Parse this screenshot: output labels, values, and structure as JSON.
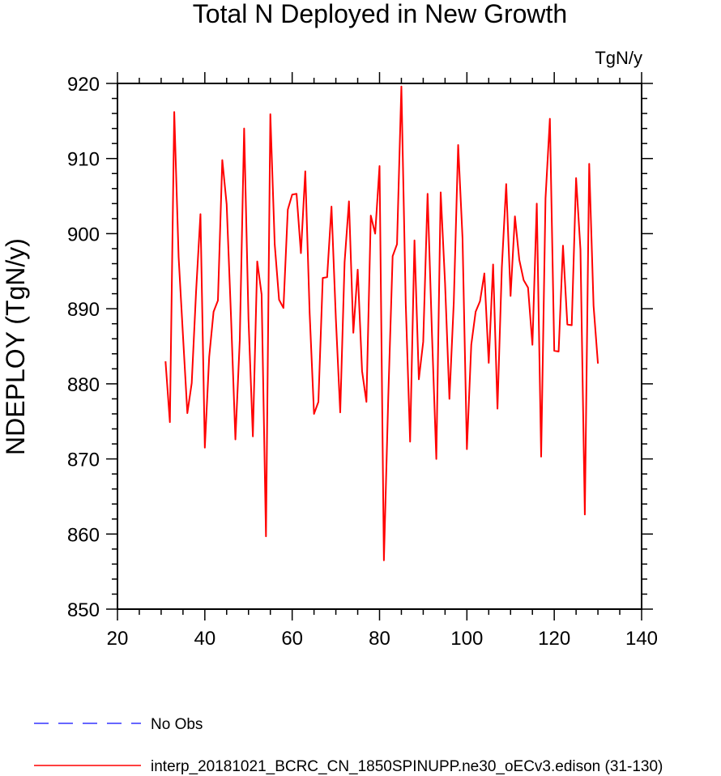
{
  "chart_data": {
    "type": "line",
    "title": "Total N Deployed in New Growth",
    "units": "TgN/y",
    "xlabel": "",
    "ylabel": "NDEPLOY  (TgN/y)",
    "xlim": [
      20,
      140
    ],
    "ylim": [
      850,
      920
    ],
    "x_ticks": [
      20,
      40,
      60,
      80,
      100,
      120,
      140
    ],
    "y_ticks": [
      850,
      860,
      870,
      880,
      890,
      900,
      910,
      920
    ],
    "grid": false,
    "legend_position": "bottom-left",
    "series": [
      {
        "name": "No Obs",
        "color": "#3333ff",
        "dash": true,
        "x": [],
        "y": []
      },
      {
        "name": "interp_20181021_BCRC_CN_1850SPINUPP.ne30_oECv3.edison (31-130)",
        "color": "#ff0000",
        "dash": false,
        "x": [
          31,
          32,
          33,
          34,
          35,
          36,
          37,
          38,
          39,
          40,
          41,
          42,
          43,
          44,
          45,
          46,
          47,
          48,
          49,
          50,
          51,
          52,
          53,
          54,
          55,
          56,
          57,
          58,
          59,
          60,
          61,
          62,
          63,
          64,
          65,
          66,
          67,
          68,
          69,
          70,
          71,
          72,
          73,
          74,
          75,
          76,
          77,
          78,
          79,
          80,
          81,
          82,
          83,
          84,
          85,
          86,
          87,
          88,
          89,
          90,
          91,
          92,
          93,
          94,
          95,
          96,
          97,
          98,
          99,
          100,
          101,
          102,
          103,
          104,
          105,
          106,
          107,
          108,
          109,
          110,
          111,
          112,
          113,
          114,
          115,
          116,
          117,
          118,
          119,
          120,
          121,
          122,
          123,
          124,
          125,
          126,
          127,
          128,
          129,
          130
        ],
        "y": [
          883.0,
          874.9,
          916.2,
          896.9,
          886.4,
          876.1,
          880.1,
          892.3,
          902.6,
          871.5,
          883.6,
          889.6,
          891.1,
          909.8,
          903.9,
          888.9,
          872.6,
          885.8,
          914.0,
          888.6,
          873.0,
          896.3,
          891.9,
          859.7,
          915.9,
          898.6,
          891.2,
          890.1,
          903.2,
          905.2,
          905.3,
          897.4,
          908.3,
          889.4,
          876.0,
          877.6,
          894.1,
          894.2,
          903.6,
          888.7,
          876.2,
          896.2,
          904.3,
          886.8,
          895.2,
          881.7,
          877.6,
          902.4,
          900.0,
          909.0,
          856.5,
          878.2,
          897.0,
          898.6,
          919.6,
          890.7,
          872.3,
          899.1,
          880.6,
          885.6,
          905.3,
          886.7,
          870.0,
          905.5,
          893.4,
          878.0,
          890.9,
          911.8,
          899.4,
          871.3,
          885.2,
          889.6,
          891.0,
          894.7,
          882.8,
          895.9,
          876.7,
          895.5,
          906.6,
          891.7,
          902.3,
          896.5,
          893.8,
          892.8,
          885.2,
          904.0,
          870.3,
          904.7,
          915.3,
          884.4,
          884.3,
          898.4,
          887.9,
          887.8,
          907.4,
          897.9,
          862.6,
          909.3,
          890.4,
          882.7
        ]
      }
    ]
  }
}
